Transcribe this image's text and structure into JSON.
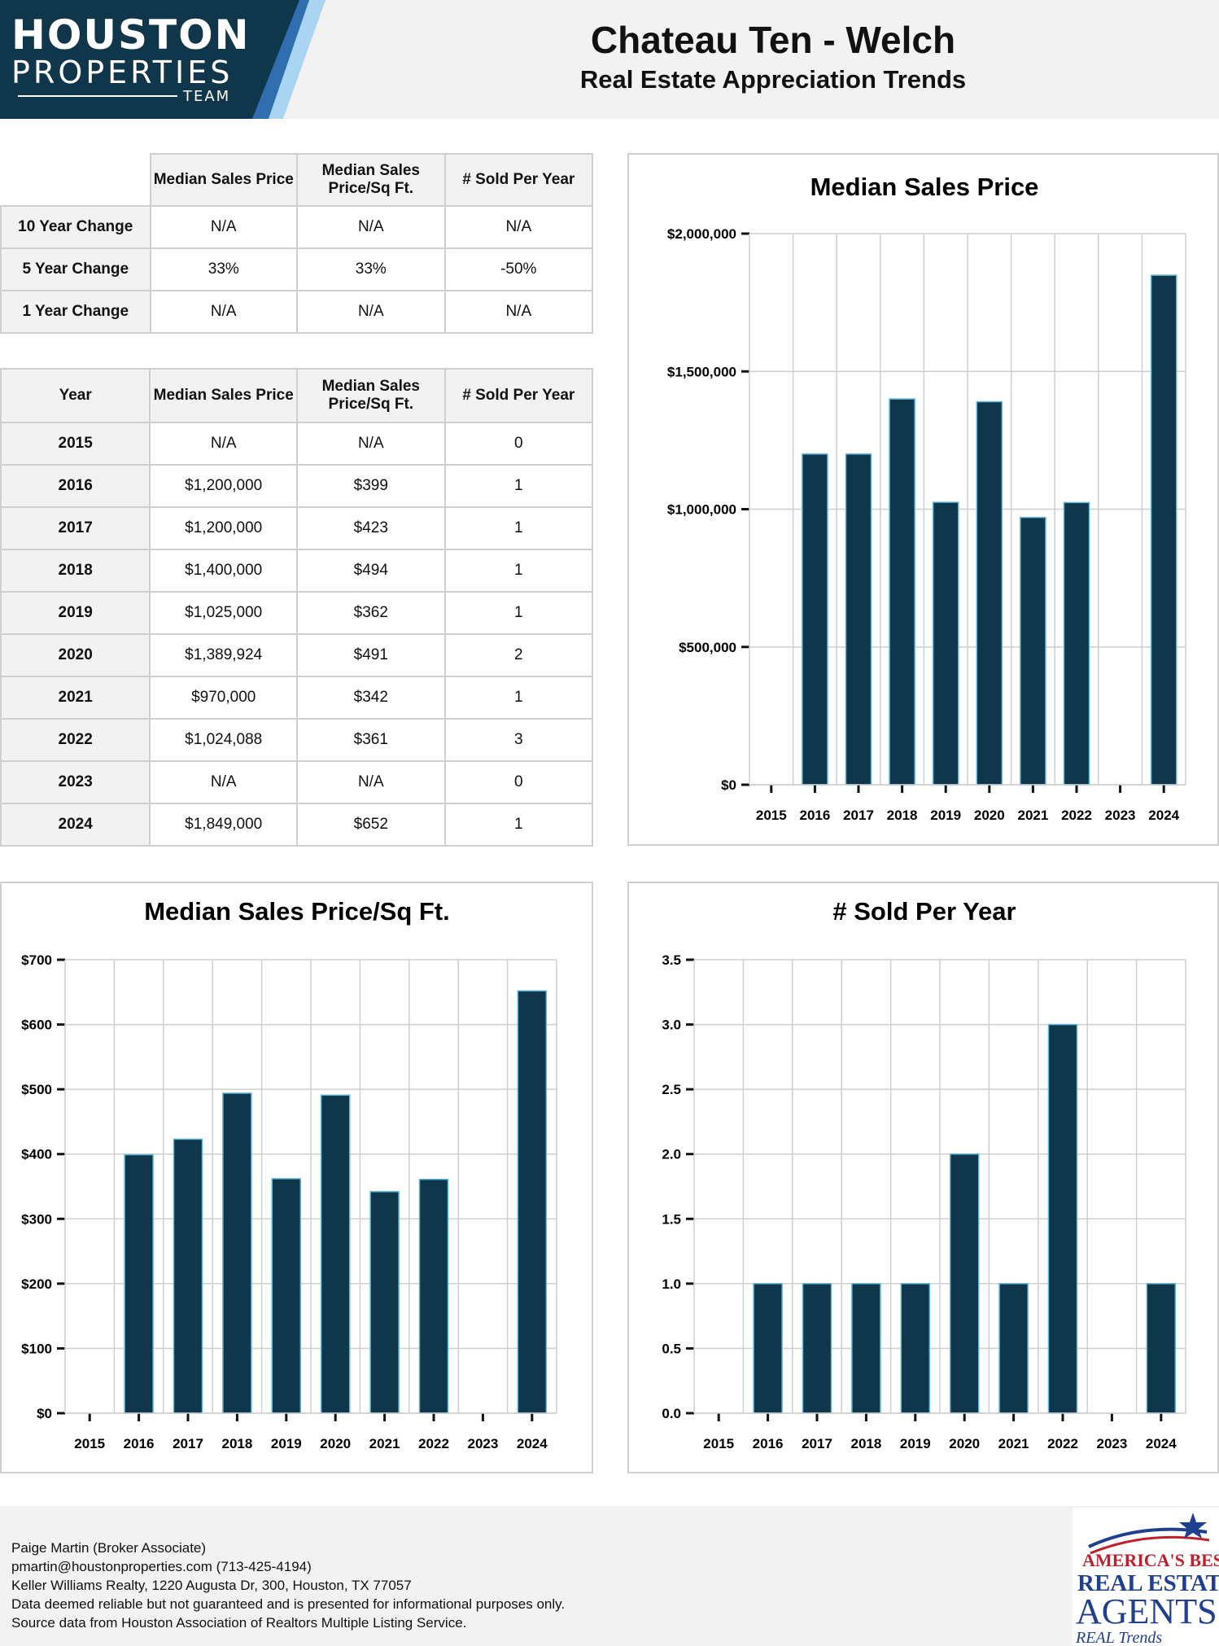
{
  "header": {
    "logo": {
      "line1": "HOUSTON",
      "line2": "PROPERTIES",
      "line3": "TEAM"
    },
    "title": "Chateau Ten - Welch",
    "subtitle": "Real Estate Appreciation Trends"
  },
  "change_table": {
    "columns": [
      "Median Sales Price",
      "Median Sales Price/Sq Ft.",
      "# Sold Per Year"
    ],
    "rows": [
      {
        "label": "10 Year Change",
        "values": [
          "N/A",
          "N/A",
          "N/A"
        ]
      },
      {
        "label": "5 Year Change",
        "values": [
          "33%",
          "33%",
          "-50%"
        ]
      },
      {
        "label": "1 Year Change",
        "values": [
          "N/A",
          "N/A",
          "N/A"
        ]
      }
    ]
  },
  "year_table": {
    "columns": [
      "Year",
      "Median Sales Price",
      "Median Sales Price/Sq Ft.",
      "# Sold Per Year"
    ],
    "rows": [
      [
        "2015",
        "N/A",
        "N/A",
        "0"
      ],
      [
        "2016",
        "$1,200,000",
        "$399",
        "1"
      ],
      [
        "2017",
        "$1,200,000",
        "$423",
        "1"
      ],
      [
        "2018",
        "$1,400,000",
        "$494",
        "1"
      ],
      [
        "2019",
        "$1,025,000",
        "$362",
        "1"
      ],
      [
        "2020",
        "$1,389,924",
        "$491",
        "2"
      ],
      [
        "2021",
        "$970,000",
        "$342",
        "1"
      ],
      [
        "2022",
        "$1,024,088",
        "$361",
        "3"
      ],
      [
        "2023",
        "N/A",
        "N/A",
        "0"
      ],
      [
        "2024",
        "$1,849,000",
        "$652",
        "1"
      ]
    ]
  },
  "chart_data": [
    {
      "type": "bar",
      "title": "Median Sales Price",
      "categories": [
        "2015",
        "2016",
        "2017",
        "2018",
        "2019",
        "2020",
        "2021",
        "2022",
        "2023",
        "2024"
      ],
      "values": [
        0,
        1200000,
        1200000,
        1400000,
        1025000,
        1389924,
        970000,
        1024088,
        0,
        1849000
      ],
      "ylim": [
        0,
        2000000
      ],
      "yticks": [
        "$0",
        "$500,000",
        "$1,000,000",
        "$1,500,000",
        "$2,000,000"
      ],
      "ytick_values": [
        0,
        500000,
        1000000,
        1500000,
        2000000
      ],
      "grid": true,
      "color": "#10364b"
    },
    {
      "type": "bar",
      "title": "Median Sales Price/Sq Ft.",
      "categories": [
        "2015",
        "2016",
        "2017",
        "2018",
        "2019",
        "2020",
        "2021",
        "2022",
        "2023",
        "2024"
      ],
      "values": [
        0,
        399,
        423,
        494,
        362,
        491,
        342,
        361,
        0,
        652
      ],
      "ylim": [
        0,
        700
      ],
      "yticks": [
        "$0",
        "$100",
        "$200",
        "$300",
        "$400",
        "$500",
        "$600",
        "$700"
      ],
      "ytick_values": [
        0,
        100,
        200,
        300,
        400,
        500,
        600,
        700
      ],
      "grid": true,
      "color": "#10364b"
    },
    {
      "type": "bar",
      "title": "# Sold Per Year",
      "categories": [
        "2015",
        "2016",
        "2017",
        "2018",
        "2019",
        "2020",
        "2021",
        "2022",
        "2023",
        "2024"
      ],
      "values": [
        0,
        1,
        1,
        1,
        1,
        2,
        1,
        3,
        0,
        1
      ],
      "ylim": [
        0,
        3.5
      ],
      "yticks": [
        "0.0",
        "0.5",
        "1.0",
        "1.5",
        "2.0",
        "2.5",
        "3.0",
        "3.5"
      ],
      "ytick_values": [
        0,
        0.5,
        1,
        1.5,
        2,
        2.5,
        3,
        3.5
      ],
      "grid": true,
      "color": "#10364b"
    }
  ],
  "footer": {
    "lines": [
      "Paige Martin (Broker Associate)",
      "pmartin@houstonproperties.com (713-425-4194)",
      "Keller Williams Realty, 1220 Augusta Dr, 300, Houston, TX 77057",
      "Data deemed reliable but not guaranteed and is presented for informational purposes only.",
      "Source data from Houston Association of Realtors Multiple Listing Service."
    ]
  },
  "badge": {
    "line1": "AMERICA'S BEST",
    "line2": "REAL ESTATE",
    "line3": "AGENTS",
    "line4": "REAL Trends"
  },
  "colors": {
    "bar": "#10364b",
    "bar_edge": "#5fb8d8",
    "logo_bg": "#10364b",
    "logo_accent": "#4a90c8"
  }
}
